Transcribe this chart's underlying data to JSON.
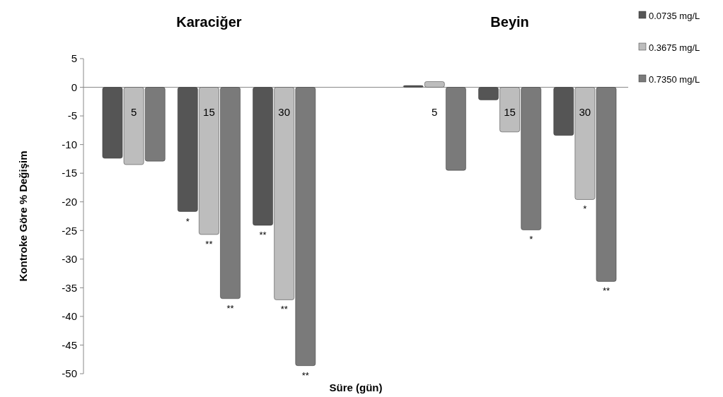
{
  "chart_data": {
    "type": "bar",
    "xlabel": "Süre (gün)",
    "ylabel": "Kontroke Göre % Değişim",
    "annotations": [
      "Karaciğer",
      "Beyin"
    ],
    "categories": [
      "5",
      "15",
      "30",
      null,
      "5",
      "15",
      "30"
    ],
    "series": [
      {
        "name": "0.0735 mg/L",
        "color": "#555555",
        "values": [
          -12.4,
          -21.7,
          -24.1,
          null,
          0.3,
          -2.2,
          -8.4
        ],
        "value_labels": [
          null,
          "*",
          "**",
          null,
          null,
          null,
          null
        ]
      },
      {
        "name": "0.3675 mg/L",
        "color": "#bdbdbd",
        "values": [
          -13.5,
          -25.7,
          -37.1,
          null,
          1,
          -7.8,
          -19.6
        ],
        "value_labels": [
          null,
          "**",
          "**",
          null,
          null,
          null,
          "*"
        ]
      },
      {
        "name": "0.7350 mg/L",
        "color": "#7a7a7a",
        "values": [
          -12.9,
          -36.9,
          -48.6,
          null,
          -14.5,
          -24.9,
          -33.9
        ],
        "value_labels": [
          null,
          "**",
          "**",
          null,
          null,
          "*",
          "**"
        ]
      }
    ],
    "ylim": [
      -50,
      5
    ],
    "yticks": [
      -50,
      -45,
      -40,
      -35,
      -30,
      -25,
      -20,
      -15,
      -10,
      -5,
      0,
      5
    ],
    "legend": "top right",
    "grid": false
  }
}
